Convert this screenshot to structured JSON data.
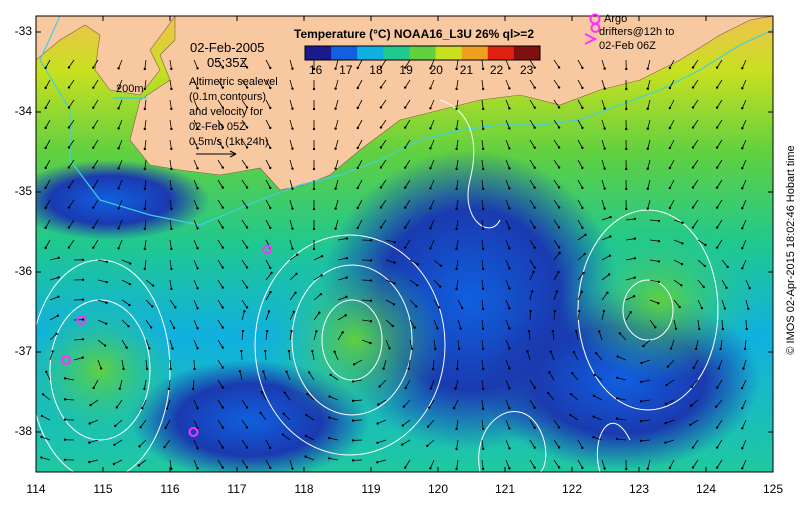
{
  "map": {
    "title_date": "02-Feb-2005",
    "title_time": "05:35Z",
    "contour_scale_label": "200m",
    "altimetry_note_lines": [
      "Altimetric sealevel",
      "(0.1m contours)",
      "and velocity for",
      "02-Feb 05Z",
      "0.5m/s (1kt 24h)"
    ],
    "credit": "© IMOS 02-Apr-2015 18:02:46 Hobart time",
    "colors": {
      "land": "#f8c8a0",
      "contour": "#ffffff",
      "isobath": "#40d0e0",
      "argo": "#ff30ff",
      "vector": "#000000"
    }
  },
  "colorbar": {
    "title": "Temperature (°C) NOAA16_L3U 26% ql>=2",
    "ticks": [
      16,
      17,
      18,
      19,
      20,
      21,
      22,
      23
    ],
    "colors": [
      "#1a1a8c",
      "#1060e0",
      "#10b0e0",
      "#20c890",
      "#60d040",
      "#c8e020",
      "#f0a020",
      "#e02010",
      "#801010"
    ]
  },
  "legend": {
    "argo_label": "Argo",
    "drifter_label_lines": [
      "drifters@12h to",
      "02-Feb 06Z"
    ]
  },
  "axes": {
    "x_ticks": [
      "114",
      "115",
      "116",
      "117",
      "118",
      "119",
      "120",
      "121",
      "122",
      "123",
      "124",
      "125"
    ],
    "y_ticks": [
      "-33",
      "-34",
      "-35",
      "-36",
      "-37",
      "-38"
    ]
  },
  "argo_floats": [
    {
      "lon": 117.45,
      "lat": -35.72
    },
    {
      "lon": 114.68,
      "lat": -36.6
    },
    {
      "lon": 114.45,
      "lat": -37.1
    },
    {
      "lon": 116.35,
      "lat": -38.0
    },
    {
      "lon": 122.35,
      "lat": -32.95
    }
  ],
  "eddies": [
    {
      "lon": 118.8,
      "lat": -37.0,
      "sign": "warm"
    },
    {
      "lon": 114.6,
      "lat": -37.2,
      "sign": "warm"
    },
    {
      "lon": 123.0,
      "lat": -36.7,
      "sign": "warm"
    }
  ]
}
